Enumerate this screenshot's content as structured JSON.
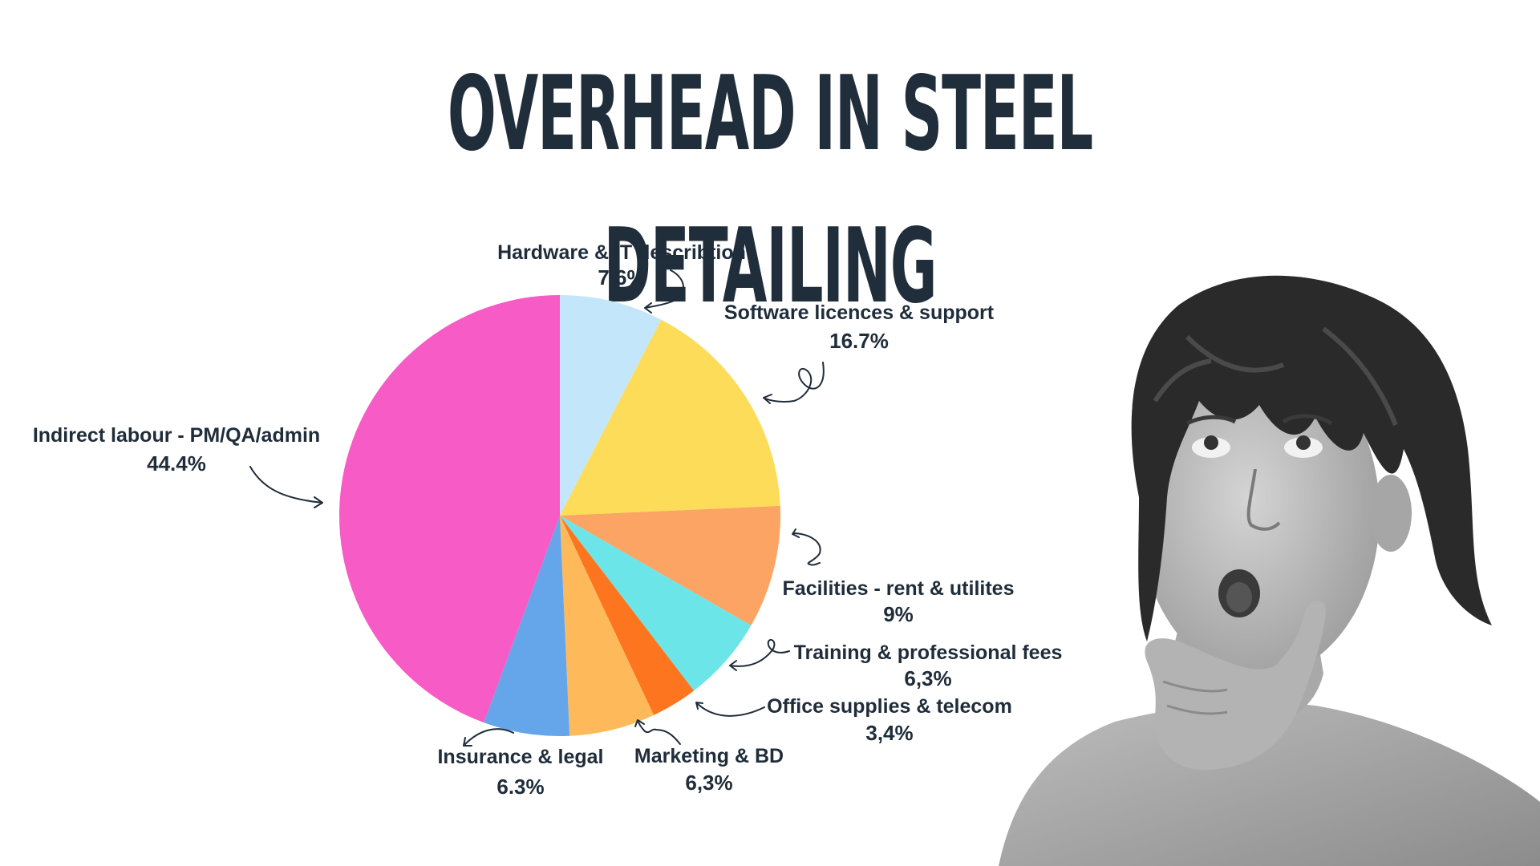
{
  "title": "OVERHEAD IN STEEL DETAILING",
  "photo": {
    "icon": "thinking-boy-photo",
    "description_icon": "boy-looking-up-hand-on-chin"
  },
  "chart_data": {
    "type": "pie",
    "title": "OVERHEAD IN STEEL DETAILING",
    "start_angle_deg": 0,
    "direction": "clockwise",
    "slices": [
      {
        "name": "Hardware & IT describtion",
        "label": "7.6%",
        "value": 7.6,
        "color": "#c4e6fb"
      },
      {
        "name": "Software licences & support",
        "label": "16.7%",
        "value": 16.7,
        "color": "#fddc5a"
      },
      {
        "name": "Facilities - rent & utilites",
        "label": "9%",
        "value": 9.0,
        "color": "#fca463"
      },
      {
        "name": "Training & professional fees",
        "label": "6,3%",
        "value": 6.3,
        "color": "#6ce5e8"
      },
      {
        "name": "Office supplies & telecom",
        "label": "3,4%",
        "value": 3.4,
        "color": "#fd751f"
      },
      {
        "name": "Marketing & BD",
        "label": "6,3%",
        "value": 6.3,
        "color": "#feb95a"
      },
      {
        "name": "Insurance & legal",
        "label": "6.3%",
        "value": 6.3,
        "color": "#65a6ea"
      },
      {
        "name": "Indirect labour - PM/QA/admin",
        "label": "44.4%",
        "value": 44.4,
        "color": "#f75bc5"
      }
    ]
  }
}
